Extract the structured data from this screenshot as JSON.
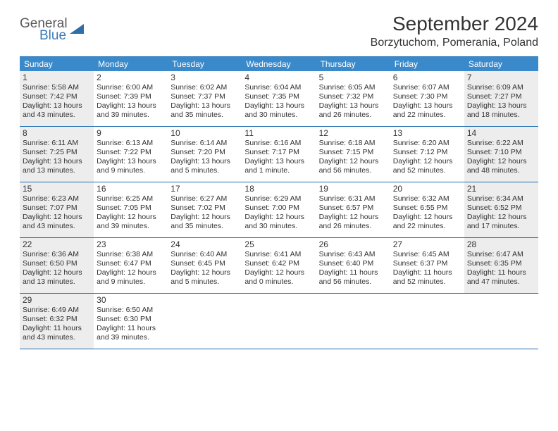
{
  "brand": {
    "word1": "General",
    "word2": "Blue",
    "word1_color": "#5a5a5a",
    "word2_color": "#3a7ab8",
    "icon_color": "#2f6fa8"
  },
  "title": "September 2024",
  "location": "Borzytuchom, Pomerania, Poland",
  "colors": {
    "header_bg": "#3a8acb",
    "header_text": "#ffffff",
    "border": "#1f6fb2",
    "shaded_bg": "#ededed",
    "text": "#333333",
    "page_bg": "#ffffff"
  },
  "day_names": [
    "Sunday",
    "Monday",
    "Tuesday",
    "Wednesday",
    "Thursday",
    "Friday",
    "Saturday"
  ],
  "weeks": [
    [
      {
        "n": "1",
        "shaded": true,
        "sunrise": "5:58 AM",
        "sunset": "7:42 PM",
        "daylight": "13 hours and 43 minutes."
      },
      {
        "n": "2",
        "shaded": false,
        "sunrise": "6:00 AM",
        "sunset": "7:39 PM",
        "daylight": "13 hours and 39 minutes."
      },
      {
        "n": "3",
        "shaded": false,
        "sunrise": "6:02 AM",
        "sunset": "7:37 PM",
        "daylight": "13 hours and 35 minutes."
      },
      {
        "n": "4",
        "shaded": false,
        "sunrise": "6:04 AM",
        "sunset": "7:35 PM",
        "daylight": "13 hours and 30 minutes."
      },
      {
        "n": "5",
        "shaded": false,
        "sunrise": "6:05 AM",
        "sunset": "7:32 PM",
        "daylight": "13 hours and 26 minutes."
      },
      {
        "n": "6",
        "shaded": false,
        "sunrise": "6:07 AM",
        "sunset": "7:30 PM",
        "daylight": "13 hours and 22 minutes."
      },
      {
        "n": "7",
        "shaded": true,
        "sunrise": "6:09 AM",
        "sunset": "7:27 PM",
        "daylight": "13 hours and 18 minutes."
      }
    ],
    [
      {
        "n": "8",
        "shaded": true,
        "sunrise": "6:11 AM",
        "sunset": "7:25 PM",
        "daylight": "13 hours and 13 minutes."
      },
      {
        "n": "9",
        "shaded": false,
        "sunrise": "6:13 AM",
        "sunset": "7:22 PM",
        "daylight": "13 hours and 9 minutes."
      },
      {
        "n": "10",
        "shaded": false,
        "sunrise": "6:14 AM",
        "sunset": "7:20 PM",
        "daylight": "13 hours and 5 minutes."
      },
      {
        "n": "11",
        "shaded": false,
        "sunrise": "6:16 AM",
        "sunset": "7:17 PM",
        "daylight": "13 hours and 1 minute."
      },
      {
        "n": "12",
        "shaded": false,
        "sunrise": "6:18 AM",
        "sunset": "7:15 PM",
        "daylight": "12 hours and 56 minutes."
      },
      {
        "n": "13",
        "shaded": false,
        "sunrise": "6:20 AM",
        "sunset": "7:12 PM",
        "daylight": "12 hours and 52 minutes."
      },
      {
        "n": "14",
        "shaded": true,
        "sunrise": "6:22 AM",
        "sunset": "7:10 PM",
        "daylight": "12 hours and 48 minutes."
      }
    ],
    [
      {
        "n": "15",
        "shaded": true,
        "sunrise": "6:23 AM",
        "sunset": "7:07 PM",
        "daylight": "12 hours and 43 minutes."
      },
      {
        "n": "16",
        "shaded": false,
        "sunrise": "6:25 AM",
        "sunset": "7:05 PM",
        "daylight": "12 hours and 39 minutes."
      },
      {
        "n": "17",
        "shaded": false,
        "sunrise": "6:27 AM",
        "sunset": "7:02 PM",
        "daylight": "12 hours and 35 minutes."
      },
      {
        "n": "18",
        "shaded": false,
        "sunrise": "6:29 AM",
        "sunset": "7:00 PM",
        "daylight": "12 hours and 30 minutes."
      },
      {
        "n": "19",
        "shaded": false,
        "sunrise": "6:31 AM",
        "sunset": "6:57 PM",
        "daylight": "12 hours and 26 minutes."
      },
      {
        "n": "20",
        "shaded": false,
        "sunrise": "6:32 AM",
        "sunset": "6:55 PM",
        "daylight": "12 hours and 22 minutes."
      },
      {
        "n": "21",
        "shaded": true,
        "sunrise": "6:34 AM",
        "sunset": "6:52 PM",
        "daylight": "12 hours and 17 minutes."
      }
    ],
    [
      {
        "n": "22",
        "shaded": true,
        "sunrise": "6:36 AM",
        "sunset": "6:50 PM",
        "daylight": "12 hours and 13 minutes."
      },
      {
        "n": "23",
        "shaded": false,
        "sunrise": "6:38 AM",
        "sunset": "6:47 PM",
        "daylight": "12 hours and 9 minutes."
      },
      {
        "n": "24",
        "shaded": false,
        "sunrise": "6:40 AM",
        "sunset": "6:45 PM",
        "daylight": "12 hours and 5 minutes."
      },
      {
        "n": "25",
        "shaded": false,
        "sunrise": "6:41 AM",
        "sunset": "6:42 PM",
        "daylight": "12 hours and 0 minutes."
      },
      {
        "n": "26",
        "shaded": false,
        "sunrise": "6:43 AM",
        "sunset": "6:40 PM",
        "daylight": "11 hours and 56 minutes."
      },
      {
        "n": "27",
        "shaded": false,
        "sunrise": "6:45 AM",
        "sunset": "6:37 PM",
        "daylight": "11 hours and 52 minutes."
      },
      {
        "n": "28",
        "shaded": true,
        "sunrise": "6:47 AM",
        "sunset": "6:35 PM",
        "daylight": "11 hours and 47 minutes."
      }
    ],
    [
      {
        "n": "29",
        "shaded": true,
        "sunrise": "6:49 AM",
        "sunset": "6:32 PM",
        "daylight": "11 hours and 43 minutes."
      },
      {
        "n": "30",
        "shaded": false,
        "sunrise": "6:50 AM",
        "sunset": "6:30 PM",
        "daylight": "11 hours and 39 minutes."
      },
      {
        "empty": true
      },
      {
        "empty": true
      },
      {
        "empty": true
      },
      {
        "empty": true
      },
      {
        "empty": true
      }
    ]
  ],
  "labels": {
    "sunrise_prefix": "Sunrise: ",
    "sunset_prefix": "Sunset: ",
    "daylight_prefix": "Daylight: "
  }
}
